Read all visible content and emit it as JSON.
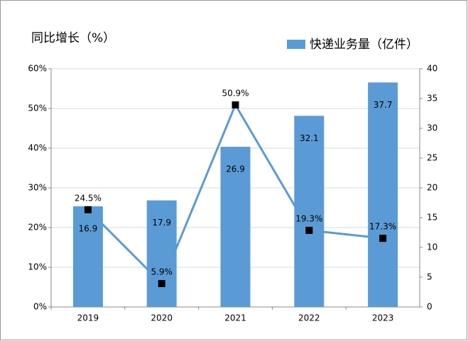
{
  "chart_data": {
    "type": "bar",
    "y_axis_title": "同比增长（%）",
    "categories": [
      "2019",
      "2020",
      "2021",
      "2022",
      "2023"
    ],
    "series": [
      {
        "name": "快递业务量（亿件）",
        "type": "bar",
        "axis": "y2",
        "color": "#5b9bd5",
        "values": [
          16.9,
          17.9,
          26.9,
          32.1,
          37.7
        ]
      },
      {
        "type": "line",
        "color": "#5b9bd5",
        "marker_color": "#000000",
        "values": [
          24.5,
          5.9,
          50.9,
          19.3,
          17.3
        ],
        "value_labels": [
          "24.5%",
          "5.9%",
          "50.9%",
          "19.3%",
          "17.3%"
        ]
      }
    ],
    "ylim": [
      0,
      60
    ],
    "yticks": [
      {
        "value": 0,
        "label": "0%"
      },
      {
        "value": 10,
        "label": "10%"
      },
      {
        "value": 20,
        "label": "20%"
      },
      {
        "value": 30,
        "label": "30%"
      },
      {
        "value": 40,
        "label": "40%"
      },
      {
        "value": 50,
        "label": "50%"
      },
      {
        "value": 60,
        "label": "60%"
      }
    ],
    "y2lim": [
      0,
      40
    ],
    "y2ticks": [
      0,
      5,
      10,
      15,
      20,
      25,
      30,
      35,
      40
    ],
    "grid": true,
    "legend": "top-right"
  }
}
